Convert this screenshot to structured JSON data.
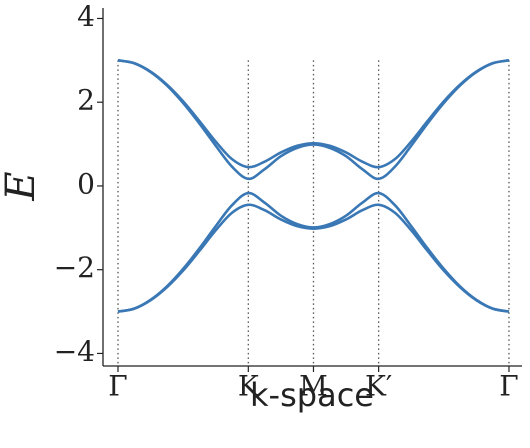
{
  "chart_data": {
    "type": "line",
    "x_label": "k-space",
    "y_label": "E",
    "x": [
      0,
      0.25,
      0.5,
      0.75,
      1,
      1.25,
      1.5,
      1.75,
      2,
      2.25,
      2.5,
      2.75,
      3,
      3.25,
      3.5,
      3.75,
      4,
      4.25,
      4.5,
      4.75,
      5,
      5.25,
      5.5,
      5.75,
      6
    ],
    "series": [
      {
        "color": "#3a78b5",
        "values": [
          3.0,
          2.93,
          2.73,
          2.42,
          2.02,
          1.55,
          1.06,
          0.64,
          0.45,
          0.58,
          0.8,
          0.96,
          1.02,
          0.96,
          0.8,
          0.58,
          0.45,
          0.64,
          1.06,
          1.55,
          2.02,
          2.42,
          2.73,
          2.93,
          3.0
        ]
      },
      {
        "color": "#3a78b5",
        "values": [
          3.0,
          2.93,
          2.72,
          2.4,
          1.98,
          1.49,
          0.96,
          0.46,
          0.17,
          0.4,
          0.71,
          0.91,
          0.99,
          0.91,
          0.71,
          0.4,
          0.17,
          0.46,
          0.96,
          1.49,
          1.98,
          2.4,
          2.72,
          2.93,
          3.0
        ]
      },
      {
        "color": "#3a78b5",
        "values": [
          -3.0,
          -2.93,
          -2.72,
          -2.4,
          -1.98,
          -1.49,
          -0.96,
          -0.46,
          -0.17,
          -0.4,
          -0.71,
          -0.91,
          -0.99,
          -0.91,
          -0.71,
          -0.4,
          -0.17,
          -0.46,
          -0.96,
          -1.49,
          -1.98,
          -2.4,
          -2.72,
          -2.93,
          -3.0
        ]
      },
      {
        "color": "#3a78b5",
        "values": [
          -3.0,
          -2.93,
          -2.73,
          -2.42,
          -2.02,
          -1.55,
          -1.06,
          -0.64,
          -0.45,
          -0.58,
          -0.8,
          -0.96,
          -1.02,
          -0.96,
          -0.8,
          -0.58,
          -0.45,
          -0.64,
          -1.06,
          -1.55,
          -2.02,
          -2.42,
          -2.73,
          -2.93,
          -3.0
        ]
      }
    ],
    "xlim": [
      -0.23,
      6.2
    ],
    "ylim": [
      -4.3,
      4.25
    ],
    "xticks": [
      {
        "value": 0,
        "label": "Γ"
      },
      {
        "value": 2,
        "label": "K"
      },
      {
        "value": 3,
        "label": "M"
      },
      {
        "value": 4,
        "label": "K′"
      },
      {
        "value": 6,
        "label": "Γ"
      }
    ],
    "yticks": [
      {
        "value": -4,
        "label": "−4"
      },
      {
        "value": -2,
        "label": "−2"
      },
      0,
      2,
      4
    ],
    "x_grid": true
  }
}
